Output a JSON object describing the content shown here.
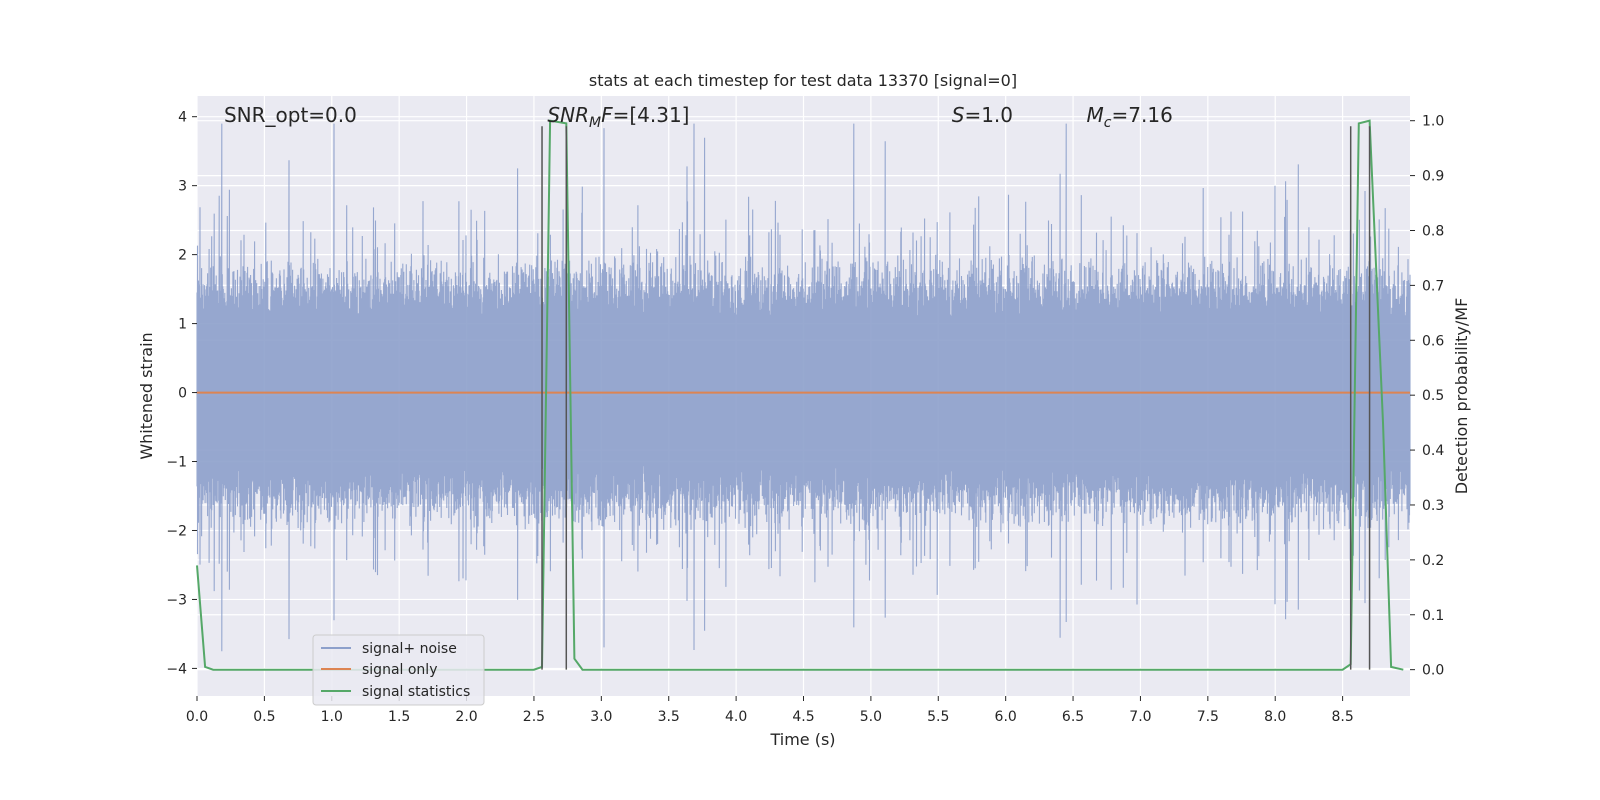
{
  "chart_data": {
    "type": "line",
    "title": "stats at each timestep for test data 13370 [signal=0]",
    "xlabel": "Time (s)",
    "ylabel": "Whitened strain",
    "y2label": "Detection probability/MF",
    "xlim": [
      0.0,
      9.0
    ],
    "ylim": [
      -4.4,
      4.3
    ],
    "y2lim": [
      -0.048,
      1.045
    ],
    "x_ticks": [
      "0.0",
      "0.5",
      "1.0",
      "1.5",
      "2.0",
      "2.5",
      "3.0",
      "3.5",
      "4.0",
      "4.5",
      "5.0",
      "5.5",
      "6.0",
      "6.5",
      "7.0",
      "7.5",
      "8.0",
      "8.5"
    ],
    "y_ticks": [
      "4",
      "3",
      "2",
      "1",
      "0",
      "−1",
      "−2",
      "−3",
      "−4"
    ],
    "y2_ticks": [
      "1.0",
      "0.9",
      "0.8",
      "0.7",
      "0.6",
      "0.5",
      "0.4",
      "0.3",
      "0.2",
      "0.1",
      "0.0"
    ],
    "grid": true,
    "legend_position": "lower-left",
    "annotations": [
      {
        "text": "SNR_opt=0.0",
        "x": 0.2
      },
      {
        "text": "SNR_MF=[4.31]",
        "x": 2.6
      },
      {
        "text": "S=1.0",
        "x": 5.6
      },
      {
        "text": "M_c=7.16",
        "x": 6.6
      }
    ],
    "series": [
      {
        "name": "signal+ noise",
        "color": "#8da0cb",
        "kind": "noise",
        "x_range": [
          0.0,
          9.0
        ],
        "typical_amplitude": 1.6,
        "peak_max": 3.9,
        "peak_min": -3.75
      },
      {
        "name": "signal only",
        "color": "#dd8452",
        "axis": "left",
        "x": [
          0.0,
          9.0
        ],
        "y": [
          0.0,
          0.0
        ]
      },
      {
        "name": "signal statistics",
        "color": "#55a868",
        "axis": "right",
        "x": [
          0.0,
          0.06,
          0.12,
          2.5,
          2.56,
          2.62,
          2.74,
          2.8,
          2.86,
          8.5,
          8.56,
          8.62,
          8.7,
          8.8,
          8.86,
          8.95
        ],
        "y": [
          0.19,
          0.005,
          0.0,
          0.0,
          0.005,
          1.0,
          0.995,
          0.02,
          0.0,
          0.0,
          0.01,
          0.995,
          1.0,
          0.45,
          0.005,
          0.0
        ]
      }
    ],
    "vertical_markers": [
      {
        "x": 2.56,
        "y2": [
          0.0,
          0.99
        ]
      },
      {
        "x": 2.74,
        "y2": [
          0.0,
          0.99
        ]
      },
      {
        "x": 8.56,
        "y2": [
          0.0,
          0.99
        ]
      },
      {
        "x": 8.7,
        "y2": [
          0.0,
          0.99
        ]
      }
    ]
  }
}
